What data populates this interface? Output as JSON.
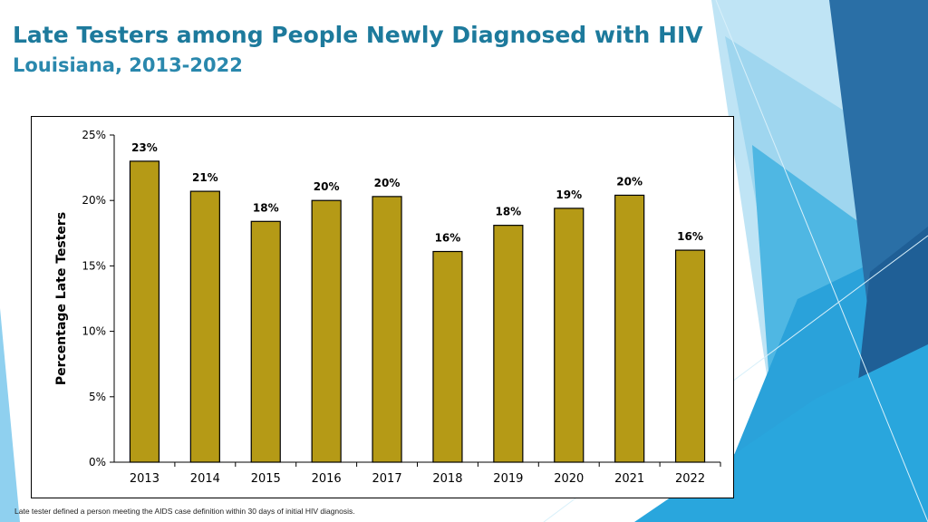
{
  "header": {
    "title": "Late Testers among People Newly Diagnosed with HIV",
    "subtitle": "Louisiana, 2013-2022"
  },
  "footnote": "Late tester defined a person meeting the AIDS case definition within 30 days of initial HIV diagnosis.",
  "colors": {
    "bar_fill": "#b59a16",
    "title": "#1d7a9c",
    "accent_light": "#8fd0ef",
    "accent_mid": "#36a8dc",
    "accent_dark": "#1f6ea8"
  },
  "chart_data": {
    "type": "bar",
    "title": "",
    "xlabel": "",
    "ylabel": "Percentage Late Testers",
    "categories": [
      "2013",
      "2014",
      "2015",
      "2016",
      "2017",
      "2018",
      "2019",
      "2020",
      "2021",
      "2022"
    ],
    "values": [
      23.0,
      20.7,
      18.4,
      20.0,
      20.3,
      16.1,
      18.1,
      19.4,
      20.4,
      16.2
    ],
    "data_labels": [
      "23%",
      "21%",
      "18%",
      "20%",
      "20%",
      "16%",
      "18%",
      "19%",
      "20%",
      "16%"
    ],
    "ylim": [
      0,
      25
    ],
    "yticks": [
      0,
      5,
      10,
      15,
      20,
      25
    ],
    "ytick_labels": [
      "0%",
      "5%",
      "10%",
      "15%",
      "20%",
      "25%"
    ],
    "grid": false,
    "legend": "none"
  }
}
